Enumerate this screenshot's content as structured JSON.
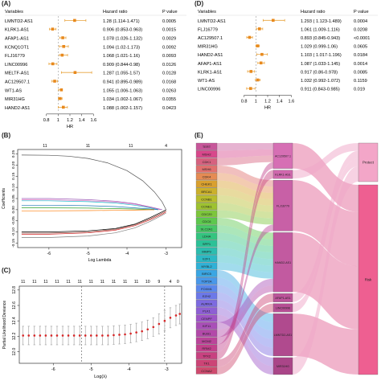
{
  "panel_labels": {
    "a": "(A)",
    "b": "(B)",
    "c": "(C)",
    "d": "(D)",
    "e": "(E)"
  },
  "chart_data": [
    {
      "panel": "A",
      "type": "forest",
      "columns": {
        "variable": "Variables",
        "hr": "Hazard ratio",
        "p": "P value"
      },
      "xlabel": "HR",
      "xticks": [
        0.8,
        1,
        1.2,
        1.4,
        1.6
      ],
      "xlim": [
        0.75,
        1.65
      ],
      "ref_x": 1.0,
      "rows": [
        {
          "name": "LMNTD2-AS1",
          "hr": 1.28,
          "lo": 1.114,
          "hi": 1.471,
          "hr_text": "1.28 (1.114-1.471)",
          "p": "0.0005"
        },
        {
          "name": "KLRK1-AS1",
          "hr": 0.906,
          "lo": 0.853,
          "hi": 0.963,
          "hr_text": "0.906 (0.853-0.963)",
          "p": "0.0015"
        },
        {
          "name": "AFAP1-AS1",
          "hr": 1.078,
          "lo": 1.026,
          "hi": 1.132,
          "hr_text": "1.078 (1.026-1.132)",
          "p": "0.0029"
        },
        {
          "name": "KCNQ1OT1",
          "hr": 1.094,
          "lo": 1.02,
          "hi": 1.173,
          "hr_text": "1.094 (1.02-1.173)",
          "p": "0.0092"
        },
        {
          "name": "FLJ16779",
          "hr": 1.068,
          "lo": 1.021,
          "hi": 1.16,
          "hr_text": "1.068 (1.021-1.16)",
          "p": "0.0093"
        },
        {
          "name": "LINC00996",
          "hr": 0.909,
          "lo": 0.844,
          "hi": 0.98,
          "hr_text": "0.909 (0.844-0.98)",
          "p": "0.0126"
        },
        {
          "name": "MELTF-AS1",
          "hr": 1.287,
          "lo": 1.055,
          "hi": 1.57,
          "hr_text": "1.287 (1.055-1.57)",
          "p": "0.0128"
        },
        {
          "name": "AC129507.1",
          "hr": 0.941,
          "lo": 0.895,
          "hi": 0.989,
          "hr_text": "0.941 (0.895-0.989)",
          "p": "0.0168"
        },
        {
          "name": "WT1-AS",
          "hr": 1.055,
          "lo": 1.006,
          "hi": 1.063,
          "hr_text": "1.055 (1.006-1.063)",
          "p": "0.0263"
        },
        {
          "name": "MIR31HG",
          "hr": 1.034,
          "lo": 1.002,
          "hi": 1.067,
          "hr_text": "1.034 (1.002-1.067)",
          "p": "0.0355"
        },
        {
          "name": "HAND2-AS1",
          "hr": 1.088,
          "lo": 1.002,
          "hi": 1.157,
          "hr_text": "1.088 (1.002-1.157)",
          "p": "0.0423"
        }
      ]
    },
    {
      "panel": "D",
      "type": "forest",
      "columns": {
        "variable": "Variables",
        "hr": "Hazard ratio",
        "p": "P value"
      },
      "xlabel": "HR",
      "xticks": [
        0.8,
        1,
        1.2,
        1.4,
        1.6
      ],
      "xlim": [
        0.75,
        1.65
      ],
      "ref_x": 1.0,
      "rows": [
        {
          "name": "LMNTD2-AS1",
          "hr": 1.293,
          "lo": 1.123,
          "hi": 1.489,
          "hr_text": "1.293 ( 1.123-1.489)",
          "p": "0.0004"
        },
        {
          "name": "FLJ16779",
          "hr": 1.061,
          "lo": 1.009,
          "hi": 1.116,
          "hr_text": "1.061 (1.009-1.116)",
          "p": "0.0208"
        },
        {
          "name": "AC129507.1",
          "hr": 0.893,
          "lo": 0.845,
          "hi": 0.943,
          "hr_text": "0.893 (0.845-0.943)",
          "p": "<0.0001"
        },
        {
          "name": "MIR31HG",
          "hr": 1.029,
          "lo": 0.999,
          "hi": 1.06,
          "hr_text": "1.029 (0.999-1.06)",
          "p": "0.0605"
        },
        {
          "name": "HAND2-AS1",
          "hr": 1.103,
          "lo": 1.017,
          "hi": 1.196,
          "hr_text": "1.103 ( 1.017-1.196)",
          "p": "0.0184"
        },
        {
          "name": "AFAP1-AS1",
          "hr": 1.087,
          "lo": 1.033,
          "hi": 1.145,
          "hr_text": "1.087 (1.033-1.145)",
          "p": "0.0014"
        },
        {
          "name": "KLRK1-AS1",
          "hr": 0.917,
          "lo": 0.86,
          "hi": 0.978,
          "hr_text": "0.917 (0.86-0.978)",
          "p": "0.0085"
        },
        {
          "name": "WT1-AS",
          "hr": 1.032,
          "lo": 0.992,
          "hi": 1.072,
          "hr_text": "1.032 (0.992-1.072)",
          "p": "0.1159"
        },
        {
          "name": "LINC00996",
          "hr": 0.911,
          "lo": 0.843,
          "hi": 0.985,
          "hr_text": "0.911 (0.843-0.985)",
          "p": "0.019"
        }
      ]
    },
    {
      "panel": "B",
      "type": "line",
      "xlabel": "Log Lambda",
      "ylabel": "Coefficients",
      "xticks": [
        -6,
        -5,
        -4,
        -3
      ],
      "xlim": [
        -6.8,
        -2.6
      ],
      "yticks": [
        -0.15,
        -0.1,
        -0.05,
        0,
        0.05,
        0.1,
        0.15,
        0.2,
        0.25
      ],
      "ylim": [
        -0.17,
        0.27
      ],
      "top_ticks": [
        {
          "x": -6.1,
          "label": "11"
        },
        {
          "x": -5.0,
          "label": "11"
        },
        {
          "x": -3.9,
          "label": "11"
        },
        {
          "x": -3.0,
          "label": "4"
        }
      ],
      "series": [
        {
          "color": "#555555",
          "values": [
            [
              -6.7,
              0.245
            ],
            [
              -6.0,
              0.244
            ],
            [
              -5.5,
              0.24
            ],
            [
              -5.0,
              0.23
            ],
            [
              -4.5,
              0.21
            ],
            [
              -4.0,
              0.175
            ],
            [
              -3.6,
              0.13
            ],
            [
              -3.3,
              0.08
            ],
            [
              -3.1,
              0.035
            ],
            [
              -3.0,
              0
            ]
          ]
        },
        {
          "color": "#9b59b6",
          "values": [
            [
              -6.7,
              0.05
            ],
            [
              -6.0,
              0.05
            ],
            [
              -5.0,
              0.045
            ],
            [
              -4.3,
              0.038
            ],
            [
              -3.8,
              0.027
            ],
            [
              -3.4,
              0.012
            ],
            [
              -3.1,
              0
            ]
          ]
        },
        {
          "color": "#e377c2",
          "values": [
            [
              -6.7,
              0.045
            ],
            [
              -6.0,
              0.044
            ],
            [
              -5.0,
              0.04
            ],
            [
              -4.3,
              0.034
            ],
            [
              -3.8,
              0.024
            ],
            [
              -3.4,
              0.01
            ],
            [
              -3.15,
              0
            ]
          ]
        },
        {
          "color": "#17becf",
          "values": [
            [
              -6.7,
              0.04
            ],
            [
              -6.0,
              0.04
            ],
            [
              -5.0,
              0.036
            ],
            [
              -4.3,
              0.03
            ],
            [
              -3.8,
              0.02
            ],
            [
              -3.4,
              0.008
            ],
            [
              -3.2,
              0
            ]
          ]
        },
        {
          "color": "#1f77b4",
          "values": [
            [
              -6.7,
              0.02
            ],
            [
              -6.0,
              0.02
            ],
            [
              -5.0,
              0.018
            ],
            [
              -4.3,
              0.014
            ],
            [
              -3.8,
              0.008
            ],
            [
              -3.4,
              0.003
            ],
            [
              -3.2,
              0
            ]
          ]
        },
        {
          "color": "#2ca02c",
          "values": [
            [
              -6.7,
              0.008
            ],
            [
              -6.0,
              0.008
            ],
            [
              -5.0,
              0.007
            ],
            [
              -4.3,
              0.005
            ],
            [
              -3.8,
              0.003
            ],
            [
              -3.3,
              0
            ]
          ]
        },
        {
          "color": "#ff7f0e",
          "values": [
            [
              -6.7,
              -0.005
            ],
            [
              -6.0,
              -0.005
            ],
            [
              -5.0,
              -0.004
            ],
            [
              -4.3,
              -0.003
            ],
            [
              -3.8,
              -0.002
            ],
            [
              -3.3,
              0
            ]
          ]
        },
        {
          "color": "#000000",
          "values": [
            [
              -6.7,
              -0.1
            ],
            [
              -6.0,
              -0.1
            ],
            [
              -5.0,
              -0.095
            ],
            [
              -4.3,
              -0.085
            ],
            [
              -3.8,
              -0.065
            ],
            [
              -3.4,
              -0.035
            ],
            [
              -3.1,
              -0.01
            ],
            [
              -3.0,
              0
            ]
          ]
        },
        {
          "color": "#8c564b",
          "values": [
            [
              -6.7,
              -0.105
            ],
            [
              -6.0,
              -0.105
            ],
            [
              -5.0,
              -0.1
            ],
            [
              -4.3,
              -0.088
            ],
            [
              -3.8,
              -0.068
            ],
            [
              -3.4,
              -0.04
            ],
            [
              -3.1,
              -0.015
            ],
            [
              -3.0,
              -0.005
            ]
          ]
        },
        {
          "color": "#d62728",
          "values": [
            [
              -6.7,
              -0.11
            ],
            [
              -6.0,
              -0.11
            ],
            [
              -5.0,
              -0.104
            ],
            [
              -4.3,
              -0.092
            ],
            [
              -3.8,
              -0.072
            ],
            [
              -3.4,
              -0.045
            ],
            [
              -3.1,
              -0.02
            ],
            [
              -3.0,
              -0.01
            ]
          ]
        },
        {
          "color": "#7f7f7f",
          "values": [
            [
              -6.7,
              -0.125
            ],
            [
              -6.0,
              -0.125
            ],
            [
              -5.0,
              -0.118
            ],
            [
              -4.3,
              -0.104
            ],
            [
              -3.8,
              -0.082
            ],
            [
              -3.4,
              -0.052
            ],
            [
              -3.1,
              -0.025
            ],
            [
              -3.0,
              -0.015
            ]
          ]
        }
      ]
    },
    {
      "panel": "C",
      "type": "errorbar",
      "xlabel": "Log(λ)",
      "ylabel": "Partial Likelihood Deviance",
      "xticks": [
        -6,
        -5,
        -4,
        -3
      ],
      "xlim": [
        -6.9,
        -2.6
      ],
      "yticks": [
        12.0,
        12.2,
        12.4,
        12.6,
        12.8
      ],
      "ylim": [
        11.85,
        12.85
      ],
      "vlines": [
        -5.25,
        -3.05
      ],
      "top_ticks": [
        {
          "x": -6.8,
          "label": "11"
        },
        {
          "x": -6.5,
          "label": "11"
        },
        {
          "x": -6.2,
          "label": "11"
        },
        {
          "x": -5.9,
          "label": "11"
        },
        {
          "x": -5.6,
          "label": "11"
        },
        {
          "x": -5.3,
          "label": "11"
        },
        {
          "x": -5.0,
          "label": "11"
        },
        {
          "x": -4.7,
          "label": "11"
        },
        {
          "x": -4.4,
          "label": "11"
        },
        {
          "x": -4.1,
          "label": "11"
        },
        {
          "x": -3.8,
          "label": "11"
        },
        {
          "x": -3.5,
          "label": "10"
        },
        {
          "x": -3.2,
          "label": "9"
        },
        {
          "x": -2.9,
          "label": "4"
        },
        {
          "x": -2.7,
          "label": "0"
        }
      ],
      "points": [
        [
          -6.8,
          12.21,
          0.12
        ],
        [
          -6.65,
          12.21,
          0.12
        ],
        [
          -6.5,
          12.21,
          0.12
        ],
        [
          -6.35,
          12.21,
          0.12
        ],
        [
          -6.2,
          12.21,
          0.12
        ],
        [
          -6.05,
          12.21,
          0.12
        ],
        [
          -5.9,
          12.21,
          0.12
        ],
        [
          -5.75,
          12.21,
          0.12
        ],
        [
          -5.6,
          12.21,
          0.12
        ],
        [
          -5.45,
          12.21,
          0.12
        ],
        [
          -5.3,
          12.21,
          0.12
        ],
        [
          -5.15,
          12.21,
          0.12
        ],
        [
          -5.0,
          12.21,
          0.12
        ],
        [
          -4.85,
          12.21,
          0.12
        ],
        [
          -4.7,
          12.21,
          0.12
        ],
        [
          -4.55,
          12.21,
          0.12
        ],
        [
          -4.4,
          12.215,
          0.12
        ],
        [
          -4.25,
          12.22,
          0.12
        ],
        [
          -4.1,
          12.225,
          0.12
        ],
        [
          -3.95,
          12.235,
          0.12
        ],
        [
          -3.8,
          12.25,
          0.12
        ],
        [
          -3.65,
          12.265,
          0.12
        ],
        [
          -3.5,
          12.29,
          0.12
        ],
        [
          -3.35,
          12.32,
          0.12
        ],
        [
          -3.2,
          12.36,
          0.13
        ],
        [
          -3.05,
          12.4,
          0.13
        ],
        [
          -2.9,
          12.44,
          0.13
        ],
        [
          -2.75,
          12.47,
          0.13
        ],
        [
          -2.65,
          12.49,
          0.13
        ]
      ]
    },
    {
      "panel": "E",
      "type": "sankey",
      "left_nodes": [
        {
          "label": "TERT",
          "color": "#c7569a"
        },
        {
          "label": "MSH2",
          "color": "#d8478b"
        },
        {
          "label": "CDK1",
          "color": "#d6617f"
        },
        {
          "label": "MSH6",
          "color": "#e0706e"
        },
        {
          "label": "CDK4",
          "color": "#e58b53"
        },
        {
          "label": "CHEK1",
          "color": "#d9a02f"
        },
        {
          "label": "BRCA1",
          "color": "#cbb02b"
        },
        {
          "label": "CCNB1",
          "color": "#b8bd2c"
        },
        {
          "label": "CCNE1",
          "color": "#9ec230"
        },
        {
          "label": "CDC20",
          "color": "#7dc63c"
        },
        {
          "label": "CDC6",
          "color": "#5dc84d"
        },
        {
          "label": "SLC2A1",
          "color": "#47c766"
        },
        {
          "label": "LDHA",
          "color": "#34c47f"
        },
        {
          "label": "SPP1",
          "color": "#2cc197"
        },
        {
          "label": "MMP9",
          "color": "#2bbdaf"
        },
        {
          "label": "E2F1",
          "color": "#2bb8c4"
        },
        {
          "label": "MYBL2",
          "color": "#30b1d6"
        },
        {
          "label": "BIRC5",
          "color": "#3aa6e3"
        },
        {
          "label": "TOP2A",
          "color": "#4898ea"
        },
        {
          "label": "FOXM1",
          "color": "#5a88ec"
        },
        {
          "label": "EZH2",
          "color": "#6c78e8"
        },
        {
          "label": "AURKA",
          "color": "#7d6ae0"
        },
        {
          "label": "PLK1",
          "color": "#8e5fd4"
        },
        {
          "label": "CENPF",
          "color": "#9d55c7"
        },
        {
          "label": "KIF11",
          "color": "#a94fb8"
        },
        {
          "label": "BUB1",
          "color": "#b349a9"
        },
        {
          "label": "MCM2",
          "color": "#bb449a"
        },
        {
          "label": "RRM2",
          "color": "#c2418c"
        },
        {
          "label": "TPX2",
          "color": "#c84180"
        },
        {
          "label": "TK1",
          "color": "#cc4476"
        },
        {
          "label": "CCNA2",
          "color": "#cf4a6e"
        }
      ],
      "mid_nodes": [
        {
          "label": "AC129507.1",
          "color": "#d66fb4"
        },
        {
          "label": "KLRK1-AS1",
          "color": "#cf68ad"
        },
        {
          "label": "FLJ16779",
          "color": "#c860a6"
        },
        {
          "label": "HAND2-AS1",
          "color": "#c25aa0"
        },
        {
          "label": "AFAP1-AS1",
          "color": "#bc549a"
        },
        {
          "label": "LINC00996",
          "color": "#b64f94"
        },
        {
          "label": "LMNTD2-AS1",
          "color": "#b04a8e"
        },
        {
          "label": "MIR31HG",
          "color": "#aa4588"
        }
      ],
      "right_nodes": [
        {
          "label": "Protect",
          "color": "#f3a6c8"
        },
        {
          "label": "Risk",
          "color": "#ee5f91"
        }
      ]
    }
  ]
}
